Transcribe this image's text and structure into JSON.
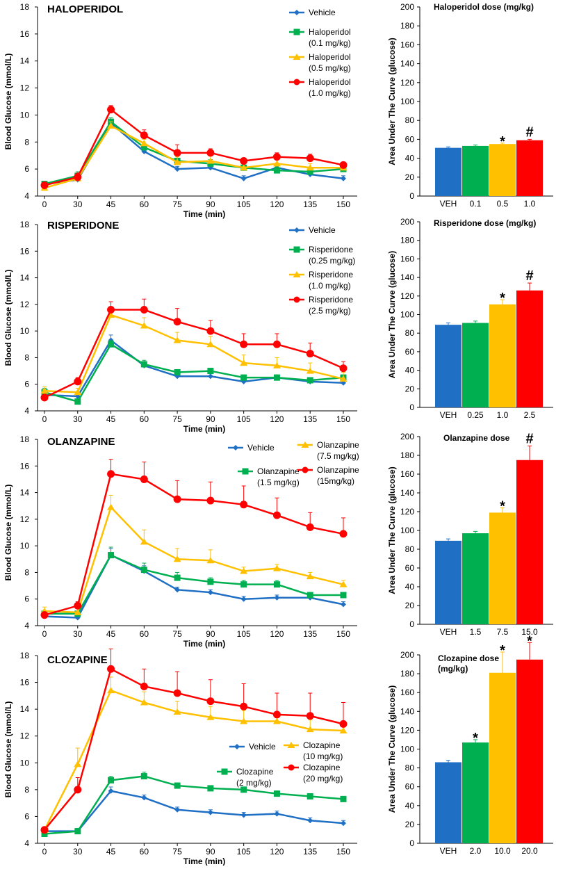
{
  "x_axis_title": "Time (min)",
  "y_axis_title": "Blood Glucose (mmol/L)",
  "bar_y_axis_title": "Area Under The Curve (glucose)",
  "colors": {
    "vehicle": "#1f6fc5",
    "low": "#00b050",
    "mid": "#ffc000",
    "high": "#ff0000"
  },
  "chart_data": [
    {
      "type": "line",
      "title": "HALOPERIDOL",
      "xlabel": "Time (min)",
      "ylabel": "Blood Glucose (mmol/L)",
      "x": [
        0,
        30,
        45,
        60,
        75,
        90,
        105,
        120,
        135,
        150
      ],
      "x_ticks": [
        "0",
        "30",
        "45",
        "60",
        "75",
        "90",
        "105",
        "120",
        "135",
        "150"
      ],
      "ylim": [
        4,
        18
      ],
      "y_ticks": [
        "4",
        "6",
        "8",
        "10",
        "12",
        "14",
        "16",
        "18"
      ],
      "series": [
        {
          "name": "Vehicle",
          "legend_lines": [
            "Vehicle"
          ],
          "marker": "diamond",
          "color": "#1f6fc5",
          "values": [
            4.9,
            5.2,
            9.4,
            7.3,
            6.0,
            6.1,
            5.3,
            6.1,
            5.6,
            5.3
          ],
          "errors": [
            0.2,
            0.2,
            0.3,
            0.3,
            0.2,
            0.3,
            0.2,
            0.2,
            0.2,
            0.2
          ]
        },
        {
          "name": "Haloperidol (0.1 mg/kg)",
          "legend_lines": [
            "Haloperidol",
            "(0.1 mg/kg)"
          ],
          "marker": "square",
          "color": "#00b050",
          "values": [
            4.9,
            5.5,
            9.5,
            7.6,
            6.6,
            6.4,
            6.1,
            5.9,
            5.8,
            6.0
          ],
          "errors": [
            0.2,
            0.3,
            0.3,
            0.3,
            0.3,
            0.3,
            0.2,
            0.3,
            0.2,
            0.2
          ]
        },
        {
          "name": "Haloperidol (0.5 mg/kg)",
          "legend_lines": [
            "Haloperidol",
            "(0.5 mg/kg)"
          ],
          "marker": "triangle",
          "color": "#ffc000",
          "values": [
            4.6,
            5.3,
            9.2,
            7.9,
            6.5,
            6.6,
            6.1,
            6.4,
            6.1,
            6.1
          ],
          "errors": [
            0.2,
            0.3,
            0.3,
            0.3,
            0.4,
            0.4,
            0.3,
            0.3,
            0.3,
            0.3
          ]
        },
        {
          "name": "Haloperidol (1.0 mg/kg)",
          "legend_lines": [
            "Haloperidol",
            "(1.0 mg/kg)"
          ],
          "marker": "circle",
          "color": "#ff0000",
          "values": [
            4.8,
            5.4,
            10.4,
            8.5,
            7.2,
            7.2,
            6.6,
            6.9,
            6.8,
            6.3
          ],
          "errors": [
            0.2,
            0.3,
            0.3,
            0.4,
            0.6,
            0.3,
            0.2,
            0.3,
            0.3,
            0.2
          ]
        }
      ],
      "legend_position": "top-right"
    },
    {
      "type": "bar",
      "title": "Haloperidol dose (mg/kg)",
      "xlabel": "",
      "ylabel": "Area Under The Curve (glucose)",
      "categories": [
        "VEH",
        "0.1",
        "0.5",
        "1.0"
      ],
      "values": [
        51,
        53,
        55,
        59
      ],
      "errors": [
        1,
        1,
        1,
        1
      ],
      "significance": [
        "",
        "",
        "*",
        "#"
      ],
      "ylim": [
        0,
        200
      ],
      "y_ticks": [
        "0",
        "20",
        "40",
        "60",
        "80",
        "100",
        "120",
        "140",
        "160",
        "180",
        "200"
      ]
    },
    {
      "type": "line",
      "title": "RISPERIDONE",
      "xlabel": "Time (min)",
      "ylabel": "Blood Glucose (mmol/L)",
      "x": [
        0,
        30,
        45,
        60,
        75,
        90,
        105,
        120,
        135,
        150
      ],
      "x_ticks": [
        "0",
        "30",
        "45",
        "60",
        "75",
        "90",
        "105",
        "120",
        "135",
        "150"
      ],
      "ylim": [
        4,
        18
      ],
      "y_ticks": [
        "4",
        "6",
        "8",
        "10",
        "12",
        "14",
        "16",
        "18"
      ],
      "series": [
        {
          "name": "Vehicle",
          "legend_lines": [
            "Vehicle"
          ],
          "marker": "diamond",
          "color": "#1f6fc5",
          "values": [
            5.2,
            5.1,
            9.3,
            7.4,
            6.6,
            6.6,
            6.2,
            6.5,
            6.2,
            6.1
          ],
          "errors": [
            0.2,
            0.2,
            0.4,
            0.3,
            0.2,
            0.2,
            0.2,
            0.2,
            0.2,
            0.2
          ]
        },
        {
          "name": "Risperidone (0.25 mg/kg)",
          "legend_lines": [
            "Risperidone",
            "(0.25 mg/kg)"
          ],
          "marker": "square",
          "color": "#00b050",
          "values": [
            5.4,
            4.7,
            9.0,
            7.5,
            6.9,
            7.0,
            6.5,
            6.5,
            6.3,
            6.5
          ],
          "errors": [
            0.3,
            0.2,
            0.3,
            0.3,
            0.2,
            0.2,
            0.2,
            0.2,
            0.2,
            0.2
          ]
        },
        {
          "name": "Risperidone (1.0 mg/kg)",
          "legend_lines": [
            "Risperidone",
            "(1.0 mg/kg)"
          ],
          "marker": "triangle",
          "color": "#ffc000",
          "values": [
            5.5,
            5.4,
            11.2,
            10.4,
            9.3,
            9.0,
            7.6,
            7.4,
            7.0,
            6.4
          ],
          "errors": [
            0.3,
            0.3,
            0.5,
            0.6,
            0.6,
            0.6,
            0.6,
            0.6,
            0.6,
            0.5
          ]
        },
        {
          "name": "Risperidone (2.5 mg/kg)",
          "legend_lines": [
            "Risperidone",
            "(2.5 mg/kg)"
          ],
          "marker": "circle",
          "color": "#ff0000",
          "values": [
            5.0,
            6.2,
            11.6,
            11.6,
            10.7,
            10.0,
            9.0,
            9.0,
            8.3,
            7.2
          ],
          "errors": [
            0.2,
            0.3,
            0.6,
            0.8,
            1.0,
            0.8,
            0.8,
            0.8,
            0.8,
            0.5
          ]
        }
      ],
      "legend_position": "top-right"
    },
    {
      "type": "bar",
      "title": "Risperidone dose (mg/kg)",
      "xlabel": "",
      "ylabel": "Area Under The Curve (glucose)",
      "categories": [
        "VEH",
        "0.25",
        "1.0",
        "2.5"
      ],
      "values": [
        89,
        91,
        111,
        126
      ],
      "errors": [
        2,
        2,
        5,
        8
      ],
      "significance": [
        "",
        "",
        "*",
        "#"
      ],
      "ylim": [
        0,
        200
      ],
      "y_ticks": [
        "0",
        "20",
        "40",
        "60",
        "80",
        "100",
        "120",
        "140",
        "160",
        "180",
        "200"
      ]
    },
    {
      "type": "line",
      "title": "OLANZAPINE",
      "xlabel": "Time (min)",
      "ylabel": "Blood Glucose (mmol/L)",
      "x": [
        0,
        30,
        45,
        60,
        75,
        90,
        105,
        120,
        135,
        150
      ],
      "x_ticks": [
        "0",
        "30",
        "45",
        "60",
        "75",
        "90",
        "105",
        "120",
        "135",
        "150"
      ],
      "ylim": [
        4,
        18
      ],
      "y_ticks": [
        "4",
        "6",
        "8",
        "10",
        "12",
        "14",
        "16",
        "18"
      ],
      "series": [
        {
          "name": "Vehicle",
          "legend_lines": [
            "Vehicle"
          ],
          "marker": "diamond",
          "color": "#1f6fc5",
          "values": [
            4.7,
            4.6,
            9.3,
            8.1,
            6.7,
            6.5,
            6.0,
            6.1,
            6.1,
            5.6
          ],
          "errors": [
            0.2,
            0.2,
            0.5,
            0.4,
            0.2,
            0.2,
            0.2,
            0.2,
            0.2,
            0.2
          ]
        },
        {
          "name": "Olanzapine (1.5 mg/kg)",
          "legend_lines": [
            "Olanzapine",
            "(1.5 mg/kg)"
          ],
          "marker": "square",
          "color": "#00b050",
          "values": [
            4.9,
            4.9,
            9.3,
            8.2,
            7.6,
            7.3,
            7.1,
            7.1,
            6.3,
            6.3
          ],
          "errors": [
            0.2,
            0.2,
            0.6,
            0.5,
            0.4,
            0.3,
            0.3,
            0.3,
            0.2,
            0.2
          ]
        },
        {
          "name": "Olanzapine (7.5 mg/kg)",
          "legend_lines": [
            "Olanzapine",
            "(7.5 mg/kg)"
          ],
          "marker": "triangle",
          "color": "#ffc000",
          "values": [
            5.1,
            5.0,
            12.9,
            10.3,
            9.0,
            8.9,
            8.1,
            8.3,
            7.7,
            7.1
          ],
          "errors": [
            0.3,
            0.3,
            0.9,
            0.9,
            0.8,
            0.8,
            0.3,
            0.3,
            0.3,
            0.3
          ]
        },
        {
          "name": "Olanzapine (15mg/kg)",
          "legend_lines": [
            "Olanzapine",
            "(15mg/kg)"
          ],
          "marker": "circle",
          "color": "#ff0000",
          "values": [
            4.8,
            5.5,
            15.4,
            15.0,
            13.5,
            13.4,
            13.1,
            12.3,
            11.4,
            10.9
          ],
          "errors": [
            0.2,
            0.3,
            1.1,
            1.3,
            1.4,
            1.4,
            1.4,
            1.3,
            1.1,
            1.2
          ]
        }
      ],
      "legend_position": "top-right"
    },
    {
      "type": "bar",
      "title": "Olanzapine dose",
      "xlabel": "",
      "ylabel": "Area Under The Curve (glucose)",
      "categories": [
        "VEH",
        "1.5",
        "7.5",
        "15.0"
      ],
      "values": [
        89,
        97,
        119,
        175
      ],
      "errors": [
        2,
        2,
        5,
        15
      ],
      "significance": [
        "",
        "",
        "*",
        "#"
      ],
      "ylim": [
        0,
        200
      ],
      "y_ticks": [
        "0",
        "20",
        "40",
        "60",
        "80",
        "100",
        "120",
        "140",
        "160",
        "180",
        "200"
      ]
    },
    {
      "type": "line",
      "title": "CLOZAPINE",
      "xlabel": "Time (min)",
      "ylabel": "Blood Glucose (mmol/L)",
      "x": [
        0,
        30,
        45,
        60,
        75,
        90,
        105,
        120,
        135,
        150
      ],
      "x_ticks": [
        "0",
        "30",
        "45",
        "60",
        "75",
        "90",
        "105",
        "120",
        "135",
        "150"
      ],
      "ylim": [
        4,
        18
      ],
      "y_ticks": [
        "4",
        "6",
        "8",
        "10",
        "12",
        "14",
        "16",
        "18"
      ],
      "series": [
        {
          "name": "Vehicle",
          "legend_lines": [
            "Vehicle"
          ],
          "marker": "diamond",
          "color": "#1f6fc5",
          "values": [
            4.9,
            4.9,
            7.9,
            7.4,
            6.5,
            6.3,
            6.1,
            6.2,
            5.7,
            5.5
          ],
          "errors": [
            0.2,
            0.2,
            0.3,
            0.2,
            0.2,
            0.2,
            0.2,
            0.2,
            0.2,
            0.2
          ]
        },
        {
          "name": "Clozapine (2 mg/kg)",
          "legend_lines": [
            "Clozapine",
            "(2 mg/kg)"
          ],
          "marker": "square",
          "color": "#00b050",
          "values": [
            4.7,
            4.9,
            8.7,
            9.0,
            8.3,
            8.1,
            8.0,
            7.7,
            7.5,
            7.3
          ],
          "errors": [
            0.2,
            0.2,
            0.3,
            0.3,
            0.2,
            0.2,
            0.2,
            0.2,
            0.2,
            0.2
          ]
        },
        {
          "name": "Clozapine (10 mg/kg)",
          "legend_lines": [
            "Clozapine",
            "(10 mg/kg)"
          ],
          "marker": "triangle",
          "color": "#ffc000",
          "values": [
            5.0,
            9.9,
            15.4,
            14.5,
            13.8,
            13.4,
            13.1,
            13.1,
            12.5,
            12.4
          ],
          "errors": [
            0.2,
            1.2,
            1.0,
            0.8,
            0.8,
            0.8,
            0.8,
            0.7,
            0.7,
            0.6
          ]
        },
        {
          "name": "Clozapine (20 mg/kg)",
          "legend_lines": [
            "Clozapine",
            "(20 mg/kg)"
          ],
          "marker": "circle",
          "color": "#ff0000",
          "values": [
            5.0,
            8.0,
            17.0,
            15.7,
            15.2,
            14.6,
            14.2,
            13.6,
            13.5,
            12.9
          ],
          "errors": [
            0.2,
            0.9,
            1.5,
            1.3,
            1.6,
            1.6,
            1.7,
            1.6,
            1.7,
            1.6
          ]
        }
      ],
      "legend_position": "center-right"
    },
    {
      "type": "bar",
      "title_lines": [
        "Clozapine dose",
        "(mg/kg)"
      ],
      "xlabel": "",
      "ylabel": "Area Under The Curve (glucose)",
      "categories": [
        "VEH",
        "2.0",
        "10.0",
        "20.0"
      ],
      "values": [
        86,
        107,
        181,
        195
      ],
      "errors": [
        2,
        3,
        22,
        18
      ],
      "significance": [
        "",
        "*",
        "*",
        "*"
      ],
      "ylim": [
        0,
        200
      ],
      "y_ticks": [
        "0",
        "20",
        "40",
        "60",
        "80",
        "100",
        "120",
        "140",
        "160",
        "180",
        "200"
      ]
    }
  ]
}
